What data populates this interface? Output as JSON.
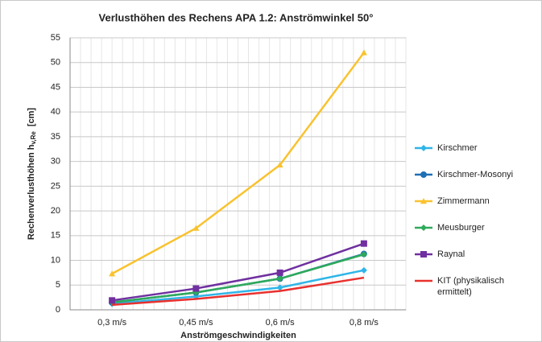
{
  "chart_data": {
    "type": "line",
    "title": "Verlusthöhen des Rechens APA 1.2: Anströmwinkel 50°",
    "x_label": "Anströmgeschwindigkeiten",
    "y_label": {
      "text": "Rechenverlusthöhen h",
      "subscript": "v,Re",
      "unit": "[cm]"
    },
    "categories": [
      "0,3 m/s",
      "0,45 m/s",
      "0,6 m/s",
      "0,8 m/s"
    ],
    "ylim": [
      0,
      55
    ],
    "yticks": [
      0,
      5,
      10,
      15,
      20,
      25,
      30,
      35,
      40,
      45,
      50,
      55
    ],
    "grid": true,
    "series": [
      {
        "name": "Kirschmer",
        "color": "#2fb5e8",
        "marker": "diamond",
        "values": [
          1.2,
          2.7,
          4.5,
          8.0
        ]
      },
      {
        "name": "Kirschmer-Mosonyi",
        "color": "#1f6fb5",
        "marker": "circle",
        "values": [
          1.5,
          3.5,
          6.3,
          11.3
        ]
      },
      {
        "name": "Zimmermann",
        "color": "#f9c22e",
        "marker": "triangle",
        "values": [
          7.3,
          16.5,
          29.3,
          52.0
        ]
      },
      {
        "name": "Meusburger",
        "color": "#2eaa5a",
        "marker": "diamond",
        "values": [
          1.5,
          3.5,
          6.3,
          11.2
        ]
      },
      {
        "name": "Raynal",
        "color": "#7030a0",
        "marker": "square",
        "values": [
          1.9,
          4.3,
          7.5,
          13.4
        ]
      },
      {
        "name": "KIT (physikalisch ermittelt)",
        "color": "#e8312e",
        "marker": "none",
        "values": [
          1.0,
          2.2,
          3.8,
          6.5
        ]
      }
    ]
  }
}
